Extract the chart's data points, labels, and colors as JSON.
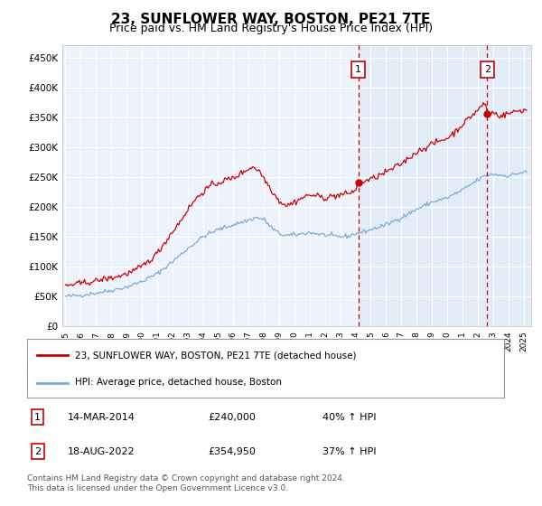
{
  "title": "23, SUNFLOWER WAY, BOSTON, PE21 7TE",
  "subtitle": "Price paid vs. HM Land Registry's House Price Index (HPI)",
  "title_fontsize": 11,
  "subtitle_fontsize": 9,
  "ylabel_ticks": [
    "£0",
    "£50K",
    "£100K",
    "£150K",
    "£200K",
    "£250K",
    "£300K",
    "£350K",
    "£400K",
    "£450K"
  ],
  "ylabel_values": [
    0,
    50000,
    100000,
    150000,
    200000,
    250000,
    300000,
    350000,
    400000,
    450000
  ],
  "ylim": [
    0,
    470000
  ],
  "xlim_start": 1994.8,
  "xlim_end": 2025.5,
  "line1_color": "#cc0000",
  "line2_color": "#7aaddc",
  "line1_label": "23, SUNFLOWER WAY, BOSTON, PE21 7TE (detached house)",
  "line2_label": "HPI: Average price, detached house, Boston",
  "marker1_date": 2014.19,
  "marker1_value": 240000,
  "marker1_label": "1",
  "marker2_date": 2022.63,
  "marker2_value": 354950,
  "marker2_label": "2",
  "shade_color": "#d8e8f5",
  "table_rows": [
    {
      "num": "1",
      "date": "14-MAR-2014",
      "price": "£240,000",
      "hpi": "40% ↑ HPI"
    },
    {
      "num": "2",
      "date": "18-AUG-2022",
      "price": "£354,950",
      "hpi": "37% ↑ HPI"
    }
  ],
  "footer": "Contains HM Land Registry data © Crown copyright and database right 2024.\nThis data is licensed under the Open Government Licence v3.0.",
  "background_color": "#ffffff",
  "plot_bg_color": "#eef2fb",
  "grid_color": "#ffffff",
  "dashed_line_color": "#cc0000"
}
